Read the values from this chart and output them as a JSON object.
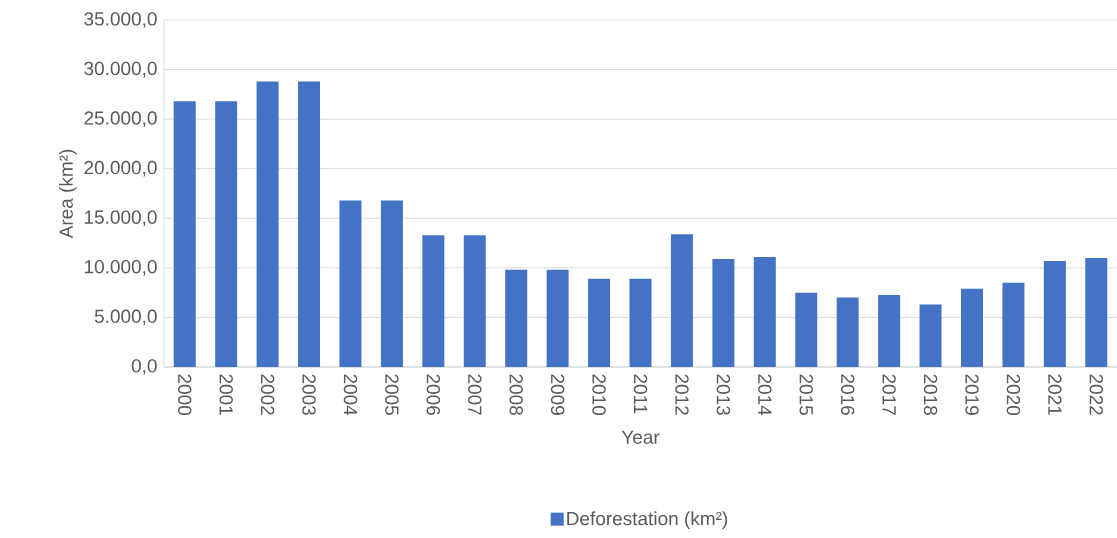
{
  "chart_data": {
    "type": "bar",
    "xlabel": "Year",
    "ylabel": "Area (km²)",
    "categories": [
      "2000",
      "2001",
      "2002",
      "2003",
      "2004",
      "2005",
      "2006",
      "2007",
      "2008",
      "2009",
      "2010",
      "2011",
      "2012",
      "2013",
      "2014",
      "2015",
      "2016",
      "2017",
      "2018",
      "2019",
      "2020",
      "2021",
      "2022"
    ],
    "series": [
      {
        "name": "Deforestation (km²)",
        "color": "#4472c4",
        "values": [
          26800,
          26800,
          28800,
          28800,
          16800,
          16800,
          13300,
          13300,
          9800,
          9800,
          8900,
          8900,
          13400,
          10900,
          11100,
          7500,
          7000,
          7250,
          6300,
          7900,
          8500,
          10700,
          11000
        ]
      }
    ],
    "ylim": [
      0,
      35000
    ],
    "yticks": [
      {
        "value": 0,
        "label": "0,0"
      },
      {
        "value": 5000,
        "label": "5.000,0"
      },
      {
        "value": 10000,
        "label": "10.000,0"
      },
      {
        "value": 15000,
        "label": "15.000,0"
      },
      {
        "value": 20000,
        "label": "20.000,0"
      },
      {
        "value": 25000,
        "label": "25.000,0"
      },
      {
        "value": 30000,
        "label": "30.000,0"
      },
      {
        "value": 35000,
        "label": "35.000,0"
      }
    ],
    "grid": "y",
    "legend": "bottom"
  }
}
